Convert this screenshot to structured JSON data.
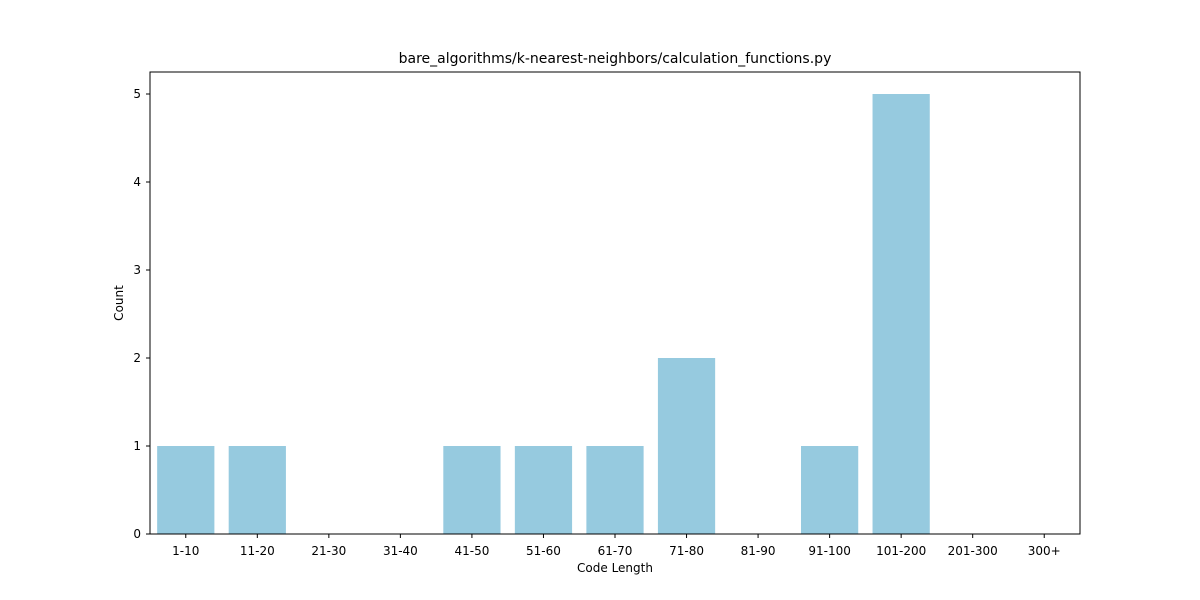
{
  "chart_data": {
    "type": "bar",
    "title": "bare_algorithms/k-nearest-neighbors/calculation_functions.py",
    "xlabel": "Code Length",
    "ylabel": "Count",
    "categories": [
      "1-10",
      "11-20",
      "21-30",
      "31-40",
      "41-50",
      "51-60",
      "61-70",
      "71-80",
      "81-90",
      "91-100",
      "101-200",
      "201-300",
      "300+"
    ],
    "values": [
      1,
      1,
      0,
      0,
      1,
      1,
      1,
      2,
      0,
      1,
      5,
      0,
      0
    ],
    "ylim": [
      0,
      5.25
    ],
    "yticks": [
      0,
      1,
      2,
      3,
      4,
      5
    ],
    "grid": false,
    "legend": "none",
    "bar_color": "#96cadf"
  }
}
